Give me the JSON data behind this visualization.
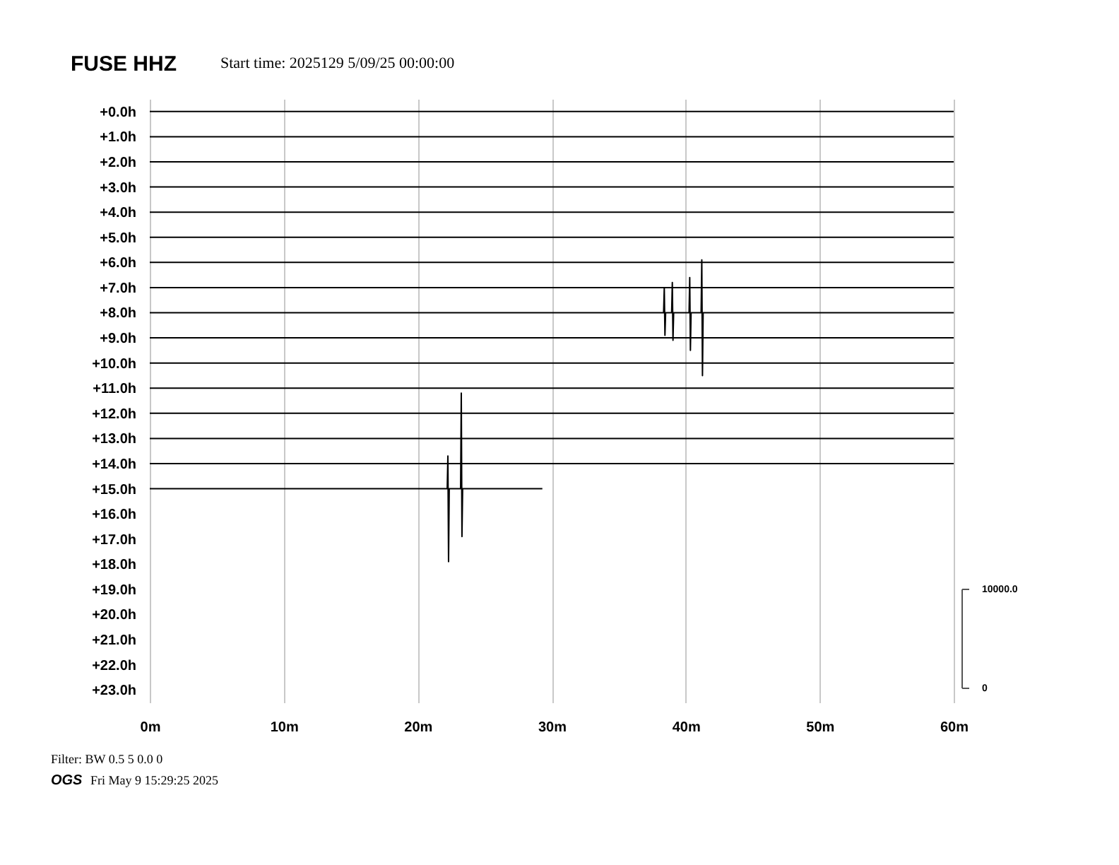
{
  "chart_data": {
    "type": "line",
    "title": "FUSE HHZ",
    "subtitle": "Start time: 2025129  5/09/25 00:00:00",
    "x": [
      0,
      60
    ],
    "series": [
      {
        "color": "#000000",
        "values": [
          0,
          0
        ]
      },
      {
        "color": "#000000",
        "values": [
          1,
          1
        ]
      },
      {
        "color": "#000000",
        "values": [
          2,
          2
        ]
      },
      {
        "color": "#000000",
        "values": [
          3,
          3
        ]
      },
      {
        "color": "#000000",
        "values": [
          4,
          4
        ]
      },
      {
        "color": "#000000",
        "values": [
          5,
          5
        ]
      },
      {
        "color": "#000000",
        "values": [
          6,
          6
        ]
      },
      {
        "color": "#000000",
        "values": [
          7,
          7
        ]
      },
      {
        "color": "#000000",
        "x": [
          0,
          38.35,
          38.4,
          38.45,
          38.5,
          38.95,
          39.0,
          39.05,
          39.1,
          40.25,
          40.3,
          40.35,
          40.4,
          41.15,
          41.2,
          41.25,
          41.3,
          42.1,
          60
        ],
        "values": [
          8,
          8,
          7.0,
          8.9,
          8,
          8,
          6.8,
          9.1,
          8,
          8,
          6.6,
          9.5,
          8,
          8,
          5.9,
          10.5,
          8,
          8,
          8
        ]
      },
      {
        "color": "#000000",
        "values": [
          9,
          9
        ]
      },
      {
        "color": "#000000",
        "values": [
          10,
          10
        ]
      },
      {
        "color": "#000000",
        "values": [
          11,
          11
        ]
      },
      {
        "color": "#000000",
        "values": [
          12,
          12
        ]
      },
      {
        "color": "#000000",
        "values": [
          13,
          13
        ]
      },
      {
        "color": "#000000",
        "values": [
          14,
          14
        ]
      },
      {
        "color": "#000000",
        "x": [
          0,
          22.2,
          22.25,
          22.3,
          22.35,
          23.2,
          23.25,
          23.3,
          23.35,
          29.3
        ],
        "values": [
          15,
          15,
          13.7,
          17.9,
          15,
          15,
          11.2,
          16.9,
          15,
          15
        ]
      }
    ],
    "xlim": [
      0,
      60
    ],
    "xticks": [
      {
        "value": 0,
        "label": "0m"
      },
      {
        "value": 10,
        "label": "10m"
      },
      {
        "value": 20,
        "label": "20m"
      },
      {
        "value": 30,
        "label": "30m"
      },
      {
        "value": 40,
        "label": "40m"
      },
      {
        "value": 50,
        "label": "50m"
      },
      {
        "value": 60,
        "label": "60m"
      }
    ],
    "ylim": [
      23.5,
      -0.5
    ],
    "yticks": [
      {
        "value": 0,
        "label": "+0.0h"
      },
      {
        "value": 1,
        "label": "+1.0h"
      },
      {
        "value": 2,
        "label": "+2.0h"
      },
      {
        "value": 3,
        "label": "+3.0h"
      },
      {
        "value": 4,
        "label": "+4.0h"
      },
      {
        "value": 5,
        "label": "+5.0h"
      },
      {
        "value": 6,
        "label": "+6.0h"
      },
      {
        "value": 7,
        "label": "+7.0h"
      },
      {
        "value": 8,
        "label": "+8.0h"
      },
      {
        "value": 9,
        "label": "+9.0h"
      },
      {
        "value": 10,
        "label": "+10.0h"
      },
      {
        "value": 11,
        "label": "+11.0h"
      },
      {
        "value": 12,
        "label": "+12.0h"
      },
      {
        "value": 13,
        "label": "+13.0h"
      },
      {
        "value": 14,
        "label": "+14.0h"
      },
      {
        "value": 15,
        "label": "+15.0h"
      },
      {
        "value": 16,
        "label": "+16.0h"
      },
      {
        "value": 17,
        "label": "+17.0h"
      },
      {
        "value": 18,
        "label": "+18.0h"
      },
      {
        "value": 19,
        "label": "+19.0h"
      },
      {
        "value": 20,
        "label": "+20.0h"
      },
      {
        "value": 21,
        "label": "+21.0h"
      },
      {
        "value": 22,
        "label": "+22.0h"
      },
      {
        "value": 23,
        "label": "+23.0h"
      }
    ],
    "grid": "x",
    "legend": false,
    "annotations": [
      "Filter: BW 0.5 5 0.0 0",
      "OGS",
      "Fri May  9 15:29:25 2025",
      "10000.0",
      "0"
    ]
  }
}
